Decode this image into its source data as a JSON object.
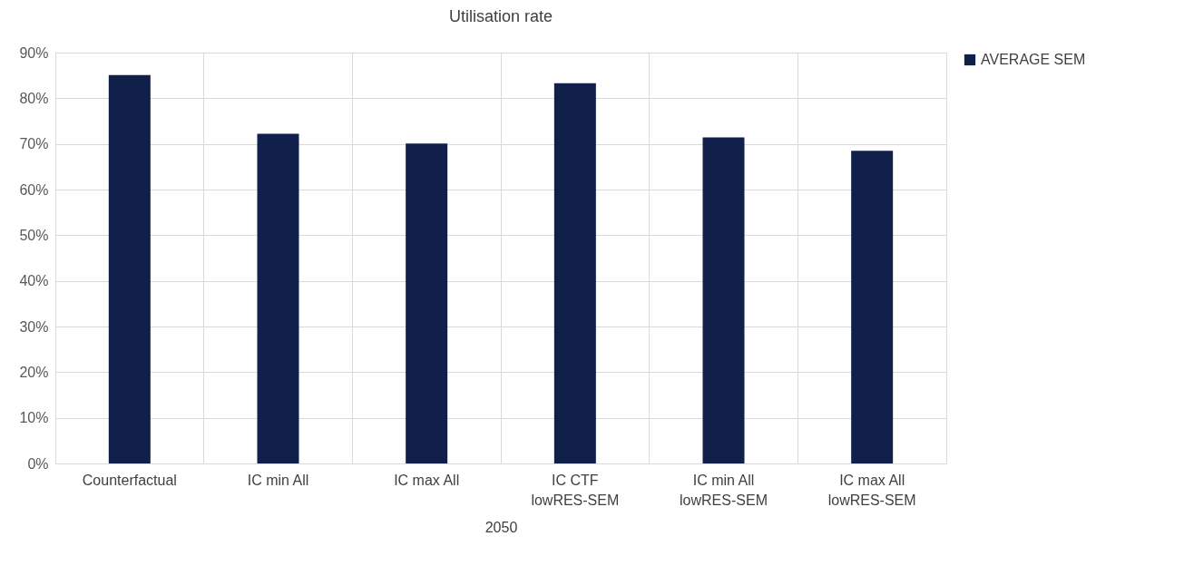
{
  "chart_data": {
    "type": "bar",
    "title": "Utilisation rate",
    "xlabel": "2050",
    "categories": [
      "Counterfactual",
      "IC min All",
      "IC max All",
      "IC CTF lowRES-SEM",
      "IC min All lowRES-SEM",
      "IC max All lowRES-SEM"
    ],
    "series": [
      {
        "name": "AVERAGE SEM",
        "color": "#10204b",
        "values": [
          85.1,
          72.2,
          70.1,
          83.3,
          71.4,
          68.5
        ]
      }
    ],
    "ylim": [
      0,
      90
    ],
    "yticks": [
      {
        "value": 0,
        "label": "0%"
      },
      {
        "value": 10,
        "label": "10%"
      },
      {
        "value": 20,
        "label": "20%"
      },
      {
        "value": 30,
        "label": "30%"
      },
      {
        "value": 40,
        "label": "40%"
      },
      {
        "value": 50,
        "label": "50%"
      },
      {
        "value": 60,
        "label": "60%"
      },
      {
        "value": 70,
        "label": "70%"
      },
      {
        "value": 80,
        "label": "80%"
      },
      {
        "value": 90,
        "label": "90%"
      }
    ],
    "grid": true,
    "legend": "right"
  }
}
